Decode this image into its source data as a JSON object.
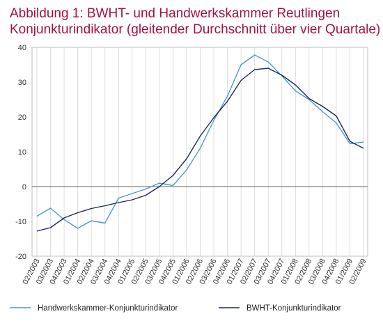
{
  "title_lines": [
    "Abbildung 1: BWHT- und Handwerkskammer  Reutlingen",
    "Konjunkturindikator (gleitender Durchschnitt über vier Quartale)"
  ],
  "chart_data": {
    "type": "line",
    "title": "Abbildung 1: BWHT- und Handwerkskammer  Reutlingen Konjunkturindikator (gleitender Durchschnitt über vier Quartale)",
    "xlabel": "",
    "ylabel": "",
    "ylim": [
      -20,
      40
    ],
    "yticks": [
      40,
      30,
      20,
      10,
      0,
      -10,
      -20
    ],
    "grid": "vertical",
    "legend_position": "bottom",
    "categories": [
      "02/2003",
      "03/2003",
      "04/2003",
      "01/2004",
      "02/2004",
      "03/2004",
      "04/2004",
      "01/2005",
      "02/2005",
      "03/2005",
      "04/2005",
      "01/2006",
      "02/2006",
      "03/2006",
      "04/2006",
      "01/2007",
      "02/2007",
      "03/2007",
      "04/2007",
      "01/2008",
      "02/2008",
      "03/2008",
      "04/2008",
      "01/2009",
      "02/2009"
    ],
    "tick_labels": [
      "02/2003",
      "03/2003",
      "04/2003",
      "01/2004",
      "02/2004",
      "03/2004",
      "04/2004",
      "01/2005",
      "02/2005",
      "03/2005",
      "04/2005",
      "01/2006",
      "02/2006",
      "03/2006",
      "04/2006",
      "01/2007",
      "02/2007",
      "03/2007",
      "04/2007",
      "01/2008",
      "02/2008",
      "03/2008",
      "04/2008",
      "01/2009",
      "02/2009"
    ],
    "series": [
      {
        "name": "Handwerkskammer-Konjunkturindikator",
        "color": "#4a9ad0",
        "values": [
          -8.5,
          -6.2,
          -9.5,
          -12.0,
          -9.8,
          -10.5,
          -3.3,
          -2.0,
          -0.7,
          1.0,
          0.3,
          4.8,
          11.0,
          19.0,
          26.0,
          35.0,
          37.8,
          35.8,
          31.8,
          27.5,
          25.0,
          21.5,
          18.3,
          12.3,
          12.8
        ]
      },
      {
        "name": "BWHT-Konjunkturindikator",
        "color": "#1a2a5e",
        "values": [
          -12.8,
          -11.8,
          -9.0,
          -7.5,
          -6.3,
          -5.5,
          -4.6,
          -3.8,
          -2.5,
          0.0,
          3.2,
          8.0,
          14.5,
          19.8,
          24.5,
          30.5,
          33.6,
          34.0,
          32.0,
          29.2,
          25.3,
          23.0,
          20.3,
          13.0,
          11.0
        ]
      }
    ]
  }
}
